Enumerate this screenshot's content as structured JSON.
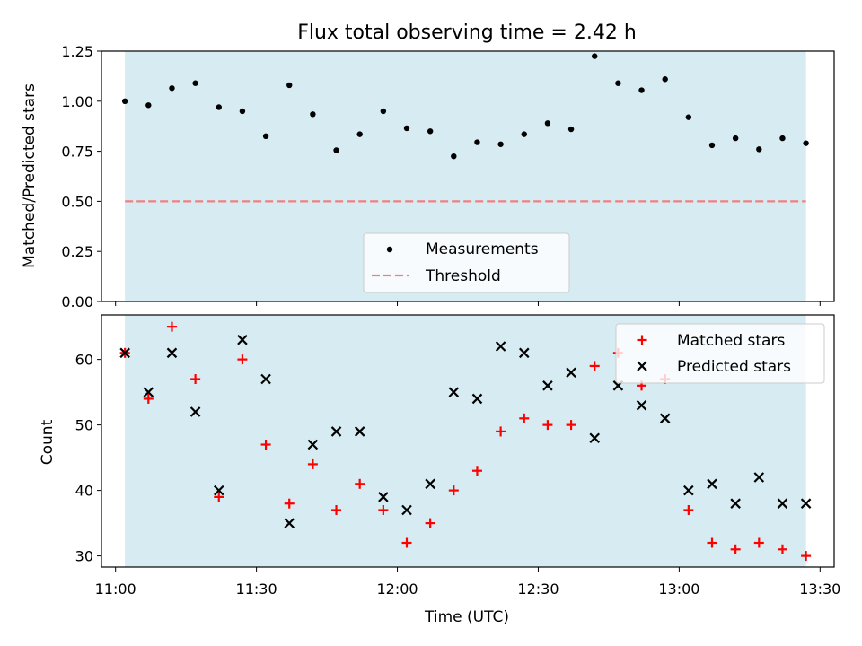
{
  "figure": {
    "title": "Flux total observing time = 2.42 h"
  },
  "colors": {
    "shade": "#add8e6",
    "threshold": "#f08080",
    "measurement": "#000000",
    "matched": "#ff0000",
    "predicted": "#000000"
  },
  "chart_data": [
    {
      "type": "scatter",
      "ylabel": "Matched/Predicted stars",
      "xlabel": "",
      "ylim": [
        0,
        1.25
      ],
      "yticks": [
        "0.00",
        "0.25",
        "0.50",
        "0.75",
        "1.00",
        "1.25"
      ],
      "shaded_span": [
        "11:02",
        "13:27"
      ],
      "threshold": 0.5,
      "legend": {
        "location": "lower-center",
        "entries": [
          "Measurements",
          "Threshold"
        ]
      },
      "series": [
        {
          "name": "Measurements",
          "x": [
            "11:02",
            "11:07",
            "11:12",
            "11:17",
            "11:22",
            "11:27",
            "11:32",
            "11:37",
            "11:42",
            "11:47",
            "11:52",
            "11:57",
            "12:02",
            "12:07",
            "12:12",
            "12:17",
            "12:22",
            "12:27",
            "12:32",
            "12:37",
            "12:42",
            "12:47",
            "12:52",
            "12:57",
            "13:02",
            "13:07",
            "13:12",
            "13:17",
            "13:22",
            "13:27"
          ],
          "y": [
            1.0,
            0.98,
            1.065,
            1.09,
            0.97,
            0.95,
            0.825,
            1.08,
            0.935,
            0.755,
            0.835,
            0.95,
            0.865,
            0.85,
            0.725,
            0.795,
            0.785,
            0.835,
            0.89,
            0.86,
            1.225,
            1.09,
            1.055,
            1.11,
            0.92,
            0.78,
            0.815,
            0.76,
            0.815,
            0.79
          ]
        }
      ]
    },
    {
      "type": "scatter",
      "ylabel": "Count",
      "xlabel": "Time (UTC)",
      "ylim": [
        28.3,
        66.8
      ],
      "xlim": [
        "10:57",
        "13:33"
      ],
      "yticks": [
        "30",
        "40",
        "50",
        "60"
      ],
      "xticks": [
        "11:00",
        "11:30",
        "12:00",
        "12:30",
        "13:00",
        "13:30"
      ],
      "shaded_span": [
        "11:02",
        "13:27"
      ],
      "legend": {
        "location": "top-right",
        "entries": [
          "Matched stars",
          "Predicted stars"
        ]
      },
      "series": [
        {
          "name": "Matched stars",
          "x": [
            "11:02",
            "11:07",
            "11:12",
            "11:17",
            "11:22",
            "11:27",
            "11:32",
            "11:37",
            "11:42",
            "11:47",
            "11:52",
            "11:57",
            "12:02",
            "12:07",
            "12:12",
            "12:17",
            "12:22",
            "12:27",
            "12:32",
            "12:37",
            "12:42",
            "12:47",
            "12:52",
            "12:57",
            "13:02",
            "13:07",
            "13:12",
            "13:17",
            "13:22",
            "13:27"
          ],
          "y": [
            61,
            54,
            65,
            57,
            39,
            60,
            47,
            38,
            44,
            37,
            41,
            37,
            32,
            35,
            40,
            43,
            49,
            51,
            50,
            50,
            59,
            61,
            56,
            57,
            37,
            32,
            31,
            32,
            31,
            30
          ]
        },
        {
          "name": "Predicted stars",
          "x": [
            "11:02",
            "11:07",
            "11:12",
            "11:17",
            "11:22",
            "11:27",
            "11:32",
            "11:37",
            "11:42",
            "11:47",
            "11:52",
            "11:57",
            "12:02",
            "12:07",
            "12:12",
            "12:17",
            "12:22",
            "12:27",
            "12:32",
            "12:37",
            "12:42",
            "12:47",
            "12:52",
            "12:57",
            "13:02",
            "13:07",
            "13:12",
            "13:17",
            "13:22",
            "13:27"
          ],
          "y": [
            61,
            55,
            61,
            52,
            40,
            63,
            57,
            35,
            47,
            49,
            49,
            39,
            37,
            41,
            55,
            54,
            62,
            61,
            56,
            58,
            48,
            56,
            53,
            51,
            40,
            41,
            38,
            42,
            38,
            38
          ]
        }
      ]
    }
  ]
}
